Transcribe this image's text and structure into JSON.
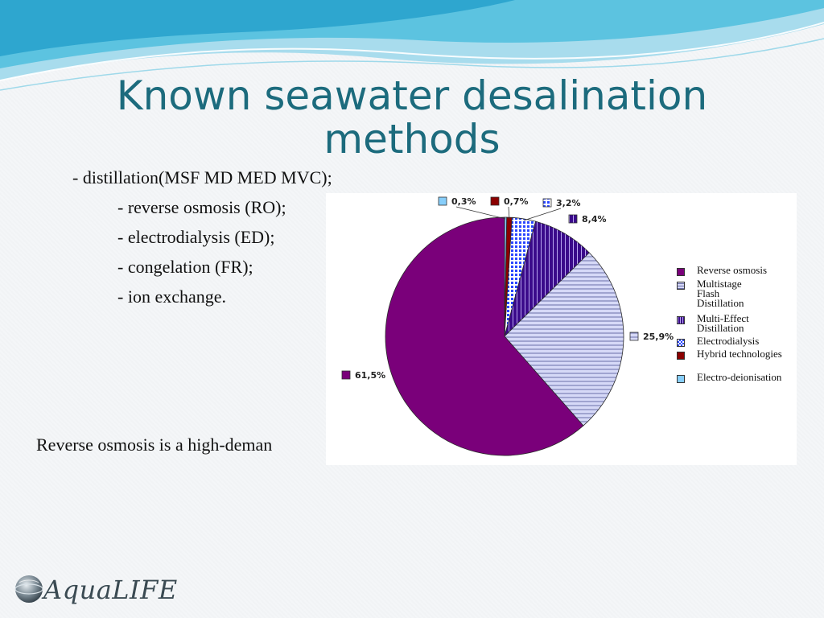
{
  "slide": {
    "title_line1": "Known seawater desalination",
    "title_line2": "methods",
    "bullets": [
      "- distillation(MSF MD MED MVC);",
      "- reverse osmosis (RO);",
      "- electrodialysis (ED);",
      "- congelation (FR);",
      "- ion exchange."
    ],
    "caption": "Reverse osmosis is a high-deman",
    "logo_text": "AquaLIFE"
  },
  "colors": {
    "title": "#1c6b7d",
    "header_wave": "#3fb6d8",
    "reverse_osmosis": "#7a007a",
    "msf": "#c9cdf2",
    "med": "#4b0f9e",
    "electrodialysis": "#3355ff",
    "hybrid": "#8b0000",
    "edi": "#87cefa"
  },
  "chart_data": {
    "type": "pie",
    "title": "",
    "slices": [
      {
        "name": "Electro-deionisation",
        "value": 0.3,
        "label": "0,3%",
        "pattern": "solid",
        "color": "#87cefa"
      },
      {
        "name": "Hybrid technologies",
        "value": 0.7,
        "label": "0,7%",
        "pattern": "solid",
        "color": "#8b0000"
      },
      {
        "name": "Electrodialysis",
        "value": 3.2,
        "label": "3,2%",
        "pattern": "grid",
        "color": "#3355ff"
      },
      {
        "name": "Multi-Effect Distillation",
        "value": 8.4,
        "label": "8,4%",
        "pattern": "vertical",
        "color": "#4b0f9e"
      },
      {
        "name": "Multistage Flash Distillation",
        "value": 25.9,
        "label": "25,9%",
        "pattern": "horizontal",
        "color": "#c9cdf2"
      },
      {
        "name": "Reverse osmosis",
        "value": 61.5,
        "label": "61,5%",
        "pattern": "solid",
        "color": "#7a007a"
      }
    ],
    "legend": [
      {
        "text": "Reverse osmosis",
        "slice": 5
      },
      {
        "text": "Multistage\nFlash\nDistillation",
        "slice": 4
      },
      {
        "text": "Multi-Effect\nDistillation",
        "slice": 3
      },
      {
        "text": "Electrodialysis",
        "slice": 2
      },
      {
        "text": "Hybrid technologies",
        "slice": 1
      },
      {
        "text": "Electro-deionisation",
        "slice": 0
      }
    ],
    "legend_position": "right"
  }
}
